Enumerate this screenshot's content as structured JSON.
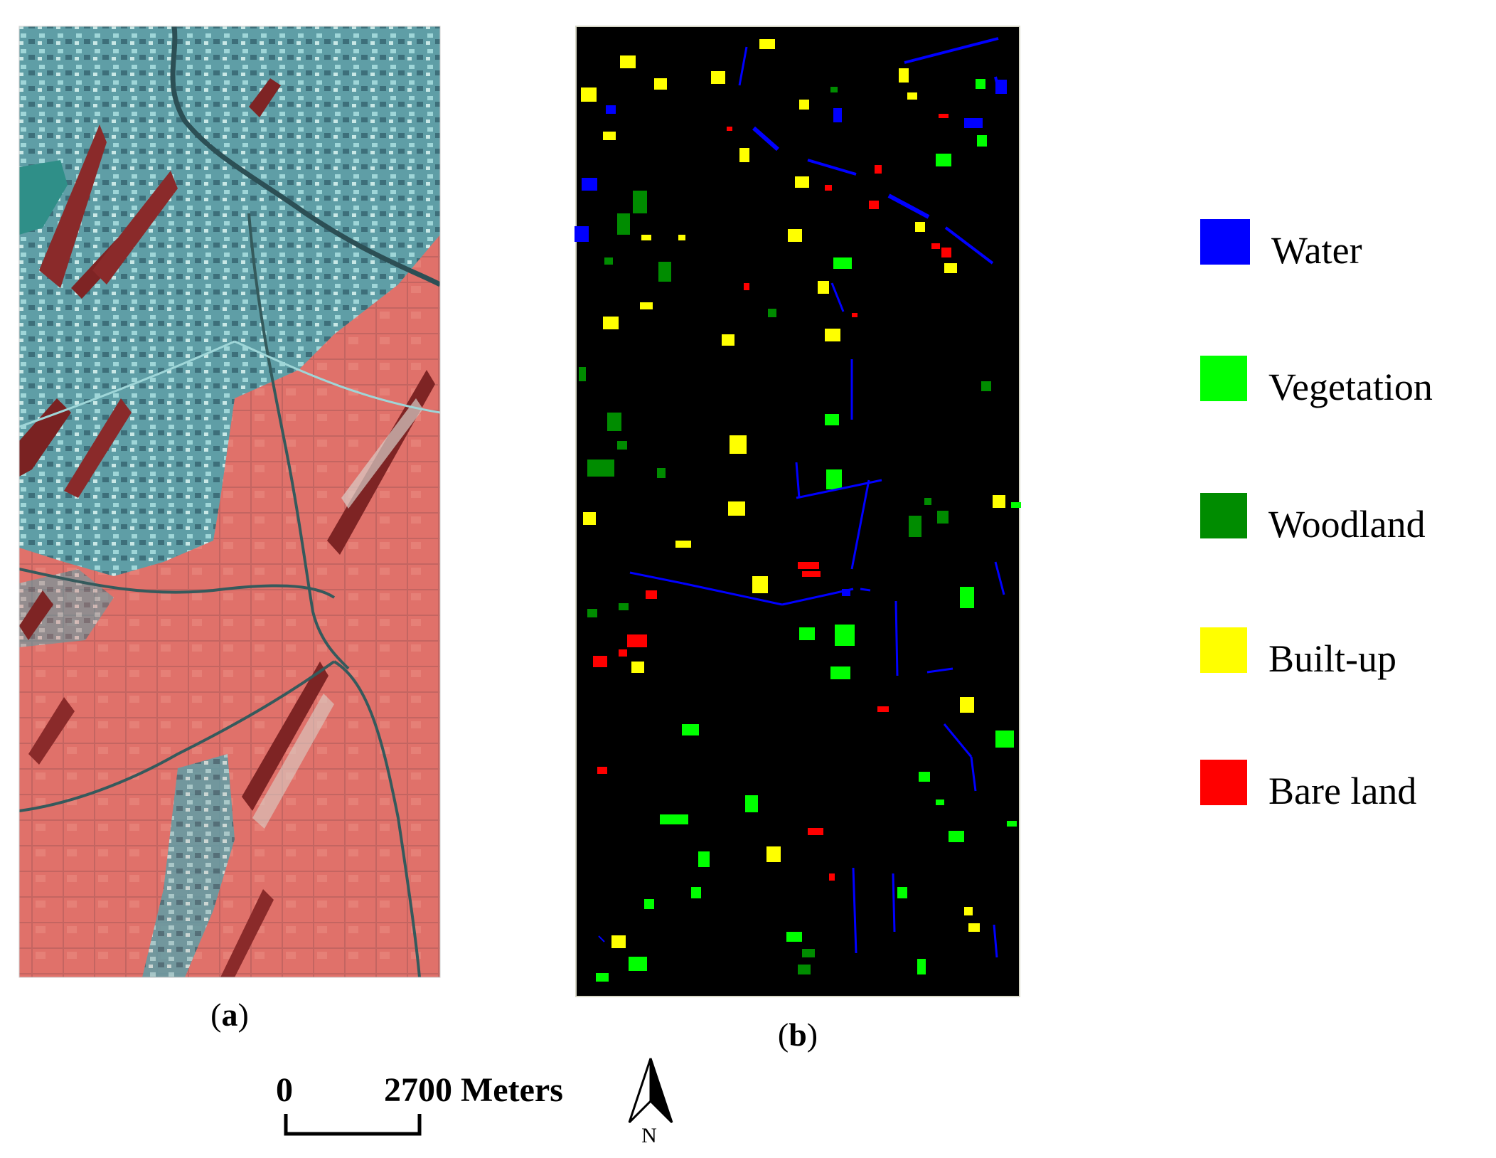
{
  "panels": {
    "a": {
      "label_open": "(",
      "label_letter": "a",
      "label_close": ")"
    },
    "b": {
      "label_open": "(",
      "label_letter": "b",
      "label_close": ")"
    }
  },
  "legend": [
    {
      "label": "Water",
      "color": "#0000ff"
    },
    {
      "label": "Vegetation",
      "color": "#00ff00"
    },
    {
      "label": "Woodland",
      "color": "#008c00"
    },
    {
      "label": "Built-up",
      "color": "#ffff00"
    },
    {
      "label": "Bare land",
      "color": "#ff0000"
    }
  ],
  "scale_bar": {
    "start": "0",
    "end": "2700 Meters"
  },
  "north_arrow": {
    "label": "N"
  },
  "colors": {
    "background": "#ffffff",
    "sample_map_background": "#000000",
    "vegetation_pink": "#e2706a",
    "urban_cyan": "#6fb4b8",
    "woodland_red": "#8a2a2a"
  }
}
